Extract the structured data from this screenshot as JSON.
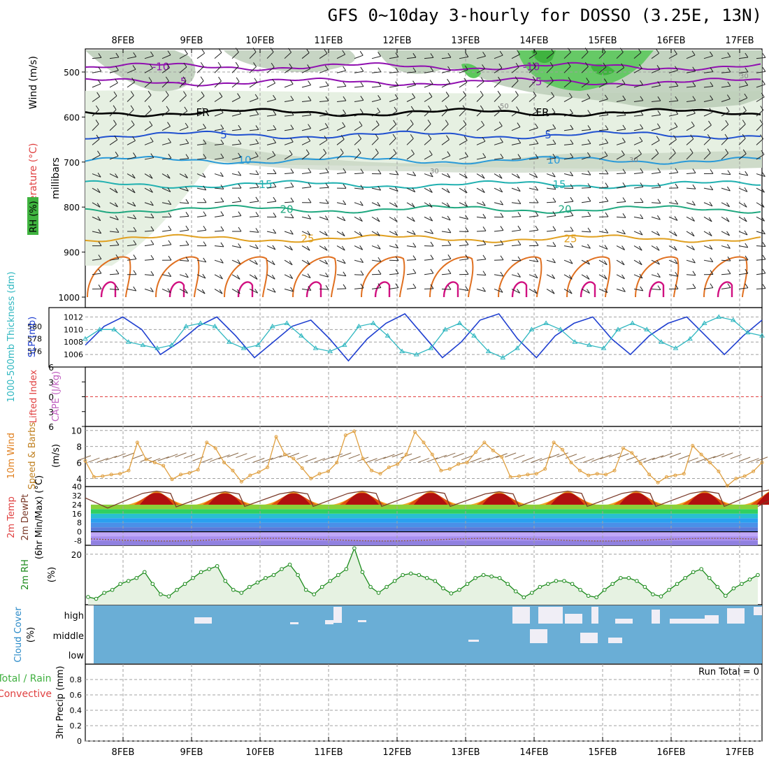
{
  "title": "GFS 0~10day 3-hourly for DOSSO (3.25E, 13N)",
  "dates": [
    "8FEB",
    "9FEB",
    "10FEB",
    "11FEB",
    "12FEB",
    "13FEB",
    "14FEB",
    "15FEB",
    "16FEB",
    "17FEB"
  ],
  "colors": {
    "grid": "#a0a0a0",
    "rh_light": "#e6f0e2",
    "rh_mid": "#b9cbb5",
    "rh_dark": "#3fb33f",
    "slp": "#1f3fd0",
    "thickness": "#2fb7c0",
    "wind": "#e0a040",
    "rh2m": "#1a8a1a",
    "cloud": "#6aaed6",
    "cloud_clear": "#f0eef6"
  },
  "chart_data": [
    {
      "type": "line",
      "panel": "upper-air",
      "ylabel_wind": "Wind (m/s)",
      "ylabel_temp": "Temperature (°C)",
      "ylabel_rh": "RH (%)",
      "ylabel_units": "millibars",
      "yticks": [
        500,
        600,
        700,
        800,
        900,
        1000
      ],
      "ylim": [
        1000,
        450
      ],
      "isotherms": [
        {
          "label": "-10",
          "level": 488,
          "color": "#9010b0"
        },
        {
          "label": "-5",
          "level": 522,
          "color": "#9010b0"
        },
        {
          "label": "FR",
          "level": 590,
          "color": "#000000"
        },
        {
          "label": "5",
          "level": 640,
          "color": "#2050d0"
        },
        {
          "label": "10",
          "level": 696,
          "color": "#2a9ad8"
        },
        {
          "label": "15",
          "level": 750,
          "color": "#20b0b0"
        },
        {
          "label": "20",
          "level": 805,
          "color": "#20a880"
        },
        {
          "label": "25",
          "level": 870,
          "color": "#e0a020"
        }
      ],
      "contour_labels": [
        "50",
        "30",
        "30",
        "30"
      ]
    },
    {
      "type": "line",
      "panel": "slp-thickness",
      "ylabel_left": "1000-500mb Thickness (dm)",
      "ylabel_right": "SLP (mb)",
      "yticks_thickness": [
        576,
        578,
        580
      ],
      "yticks_slp": [
        1006,
        1008,
        1010,
        1012
      ],
      "ylim_slp": [
        1004,
        1013.5
      ],
      "slp": [
        1007.5,
        1010.5,
        1012,
        1010,
        1006,
        1008,
        1010.5,
        1012,
        1009,
        1005.5,
        1008,
        1010.5,
        1011.5,
        1008.5,
        1005,
        1008.5,
        1011,
        1012.5,
        1009,
        1005.5,
        1008,
        1011.5,
        1012.5,
        1008.5,
        1005.5,
        1009,
        1011,
        1012,
        1008.5,
        1006,
        1009,
        1011,
        1012,
        1009,
        1006,
        1009,
        1011.5
      ],
      "thickness_slp_equiv": [
        1008.5,
        1010,
        1010,
        1008,
        1007.5,
        1007,
        1007.5,
        1010.5,
        1011,
        1010.5,
        1008,
        1007,
        1007.5,
        1010.5,
        1011,
        1009,
        1007,
        1006.5,
        1007.5,
        1010.5,
        1011,
        1009,
        1006.5,
        1006,
        1007,
        1010,
        1011,
        1009,
        1006.5,
        1005.5,
        1007,
        1010,
        1011,
        1010,
        1008,
        1007.5,
        1007,
        1010,
        1011,
        1010,
        1008,
        1007,
        1008.5,
        1011,
        1012,
        1011.5,
        1009.5,
        1009
      ]
    },
    {
      "type": "line",
      "panel": "stability",
      "ylabel_left": "Lifted Index",
      "ylabel_right": "CAPE (J/kg)",
      "yticks": [
        -6,
        -3,
        0,
        3,
        6
      ],
      "ylim": [
        -6,
        6
      ],
      "tick_labels": [
        "6",
        "3",
        "0",
        "3",
        "6"
      ]
    },
    {
      "type": "line",
      "panel": "wind10m",
      "ylabel_left": "10m Wind",
      "ylabel_mid": "Speed & Barbs",
      "ylabel_units": "(m/s)",
      "yticks": [
        4,
        6,
        8,
        10
      ],
      "ylim": [
        3,
        10.5
      ],
      "values": [
        6.2,
        4.2,
        4.3,
        4.5,
        4.6,
        5.0,
        8.5,
        6.4,
        6.0,
        5.6,
        3.9,
        4.5,
        4.7,
        5.1,
        8.5,
        7.8,
        6.0,
        5.0,
        3.6,
        4.4,
        4.8,
        5.4,
        9.2,
        7.0,
        6.5,
        5.3,
        4.0,
        4.6,
        4.9,
        6.0,
        9.4,
        9.9,
        6.5,
        5.0,
        4.6,
        5.4,
        5.8,
        7.0,
        9.8,
        8.5,
        7.0,
        5.0,
        5.2,
        5.8,
        6.0,
        7.3,
        8.5,
        7.5,
        6.7,
        4.2,
        4.3,
        4.5,
        4.6,
        5.2,
        8.5,
        7.6,
        6.0,
        5.0,
        4.4,
        4.6,
        4.5,
        5.0,
        7.8,
        7.2,
        5.9,
        4.5,
        3.5,
        4.2,
        4.4,
        4.6,
        8.1,
        7.0,
        6.0,
        4.9,
        3.1,
        4.0,
        4.3,
        4.9,
        6.0
      ]
    },
    {
      "type": "area",
      "panel": "temp2m",
      "ylabel_left": "2m Temp",
      "ylabel_mid": "2m DewPt",
      "ylabel_right": "(6hr Min/Max) (°C)",
      "yticks": [
        -8,
        0,
        8,
        16,
        24,
        32,
        40
      ],
      "ylim": [
        -12,
        40
      ],
      "tmax": [
        36,
        35.5,
        35.5,
        36,
        36,
        35.5,
        36,
        36,
        36,
        37.5
      ],
      "tmin": [
        21,
        22,
        22.5,
        22.5,
        22.5,
        22.5,
        22.5,
        22.5,
        22.5,
        22.5
      ],
      "dewpoint_mean": -7
    },
    {
      "type": "area",
      "panel": "rh2m",
      "ylabel": "2m RH",
      "ylabel_units": "(%)",
      "yticks": [
        20
      ],
      "ylim": [
        3,
        23
      ],
      "values": [
        5.6,
        5.0,
        7.0,
        8.0,
        10.0,
        11.0,
        12.0,
        14.0,
        10.0,
        6.5,
        5.8,
        8.0,
        10.0,
        12.0,
        14.0,
        15.0,
        16.0,
        11.0,
        8.0,
        7.0,
        9.0,
        10.5,
        12.0,
        13.0,
        15.0,
        16.5,
        13.0,
        8.0,
        6.5,
        9.0,
        11.0,
        13.0,
        15.0,
        22.0,
        14.0,
        9.0,
        7.0,
        9.0,
        11.0,
        13.0,
        13.5,
        13.0,
        12.0,
        11.0,
        8.5,
        6.8,
        8.0,
        10.0,
        12.0,
        13.0,
        12.5,
        12.0,
        10.0,
        7.5,
        5.5,
        7.0,
        9.0,
        10.0,
        11.0,
        11.0,
        10.0,
        8.0,
        6.0,
        5.5,
        8.0,
        10.0,
        12.0,
        12.0,
        11.0,
        9.0,
        6.5,
        5.8,
        8.0,
        10.0,
        12.0,
        14.0,
        15.0,
        12.0,
        9.0,
        6.0,
        8.5,
        10.0,
        11.5,
        13.0
      ]
    },
    {
      "type": "bar",
      "panel": "cloud",
      "ylabel": "Cloud Cover",
      "ylabel_units": "(%)",
      "levels": [
        "high",
        "middle",
        "low"
      ]
    },
    {
      "type": "bar",
      "panel": "precip",
      "ylabel_left": "Total / Rain",
      "ylabel_right": "Convective",
      "ylabel_units": "3hr Precip (mm)",
      "yticks": [
        0,
        0.2,
        0.4,
        0.6,
        0.8
      ],
      "ylim": [
        0,
        1.0
      ],
      "tick_labels": [
        "0",
        "0.2",
        "0.4",
        "0.6",
        "0.8"
      ],
      "run_total": "Run Total = 0"
    }
  ]
}
